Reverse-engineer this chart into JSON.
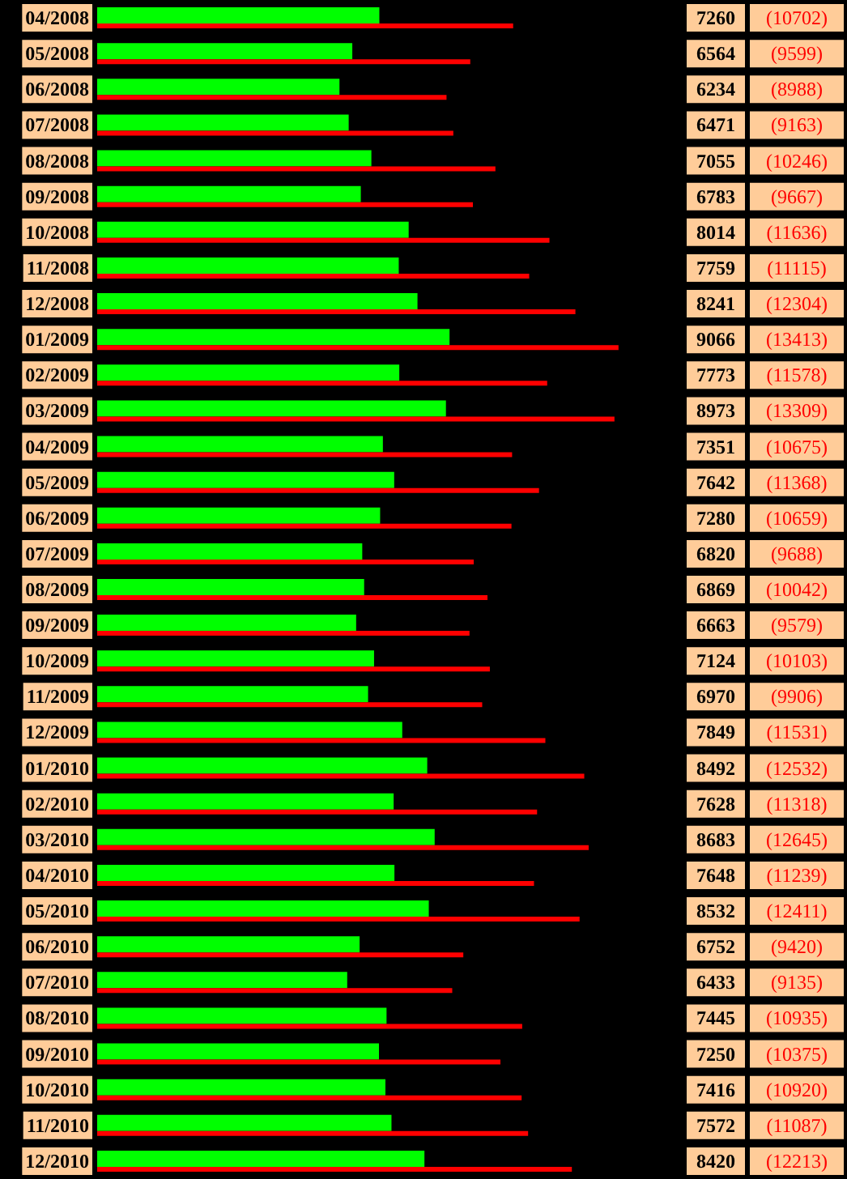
{
  "chart_data": {
    "type": "bar",
    "orientation": "horizontal",
    "grid": false,
    "categories": [
      "04/2008",
      "05/2008",
      "06/2008",
      "07/2008",
      "08/2008",
      "09/2008",
      "10/2008",
      "11/2008",
      "12/2008",
      "01/2009",
      "02/2009",
      "03/2009",
      "04/2009",
      "05/2009",
      "06/2009",
      "07/2009",
      "08/2009",
      "09/2009",
      "10/2009",
      "11/2009",
      "12/2009",
      "01/2010",
      "02/2010",
      "03/2010",
      "04/2010",
      "05/2010",
      "06/2010",
      "07/2010",
      "08/2010",
      "09/2010",
      "10/2010",
      "11/2010",
      "12/2010"
    ],
    "series": [
      {
        "color": "#00ff00",
        "values": [
          7260,
          6564,
          6234,
          6471,
          7055,
          6783,
          8014,
          7759,
          8241,
          9066,
          7773,
          8973,
          7351,
          7642,
          7280,
          6820,
          6869,
          6663,
          7124,
          6970,
          7849,
          8492,
          7628,
          8683,
          7648,
          8532,
          6752,
          6433,
          7445,
          7250,
          7416,
          7572,
          8420
        ]
      },
      {
        "color": "#ff0000",
        "values": [
          10702,
          9599,
          8988,
          9163,
          10246,
          9667,
          11636,
          11115,
          12304,
          13413,
          11578,
          13309,
          10675,
          11368,
          10659,
          9688,
          10042,
          9579,
          10103,
          9906,
          11531,
          12532,
          11318,
          12645,
          11239,
          12411,
          9420,
          9135,
          10935,
          10375,
          10920,
          11087,
          12213
        ],
        "value_labels": [
          "(10702)",
          "(9599)",
          "(8988)",
          "(9163)",
          "(10246)",
          "(9667)",
          "(11636)",
          "(11115)",
          "(12304)",
          "(13413)",
          "(11578)",
          "(13309)",
          "(10675)",
          "(11368)",
          "(10659)",
          "(9688)",
          "(10042)",
          "(9579)",
          "(10103)",
          "(9906)",
          "(11531)",
          "(12532)",
          "(11318)",
          "(12645)",
          "(11239)",
          "(12411)",
          "(9420)",
          "(9135)",
          "(10935)",
          "(10375)",
          "(10920)",
          "(11087)",
          "(12213)"
        ]
      }
    ],
    "data_labels": true
  }
}
